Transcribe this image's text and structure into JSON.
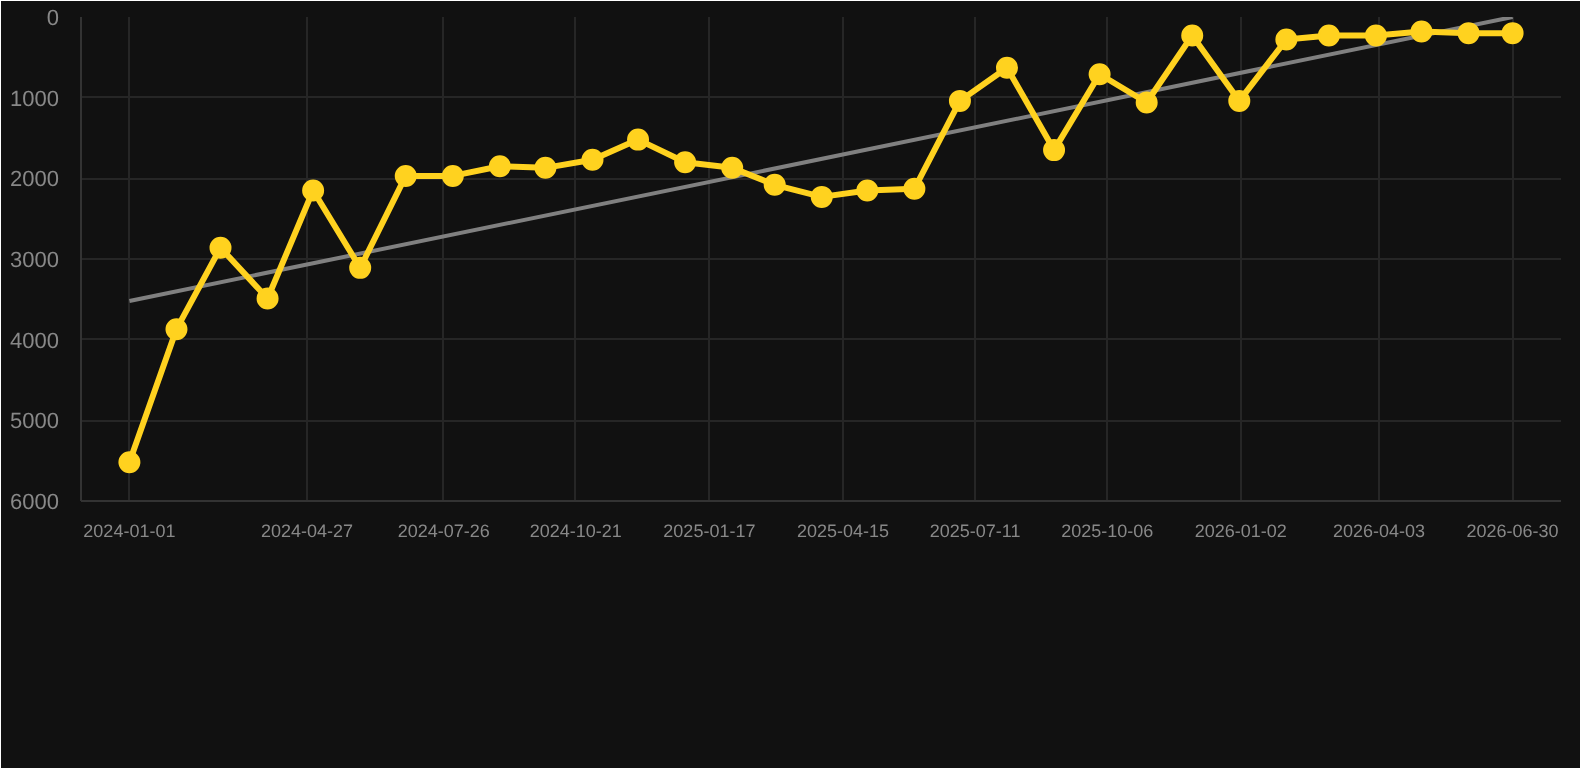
{
  "chart_data": {
    "type": "line",
    "x": [
      "2024-01-01",
      "2024-02-01",
      "2024-03-01",
      "2024-04-01",
      "2024-05-01",
      "2024-06-01",
      "2024-07-01",
      "2024-08-01",
      "2024-09-01",
      "2024-10-01",
      "2024-11-01",
      "2024-12-01",
      "2025-01-01",
      "2025-02-01",
      "2025-03-01",
      "2025-04-01",
      "2025-05-01",
      "2025-06-01",
      "2025-07-01",
      "2025-08-01",
      "2025-09-01",
      "2025-10-01",
      "2025-11-01",
      "2025-12-01",
      "2026-01-01",
      "2026-02-01",
      "2026-03-01",
      "2026-04-01",
      "2026-05-01",
      "2026-06-01",
      "2026-06-30"
    ],
    "series": [
      {
        "color": "#ffd21f",
        "marker": "circle",
        "values": [
          5520,
          3870,
          2860,
          3490,
          2150,
          3110,
          1970,
          1970,
          1850,
          1870,
          1770,
          1520,
          1800,
          1870,
          2080,
          2230,
          2150,
          2130,
          1040,
          630,
          1650,
          710,
          1060,
          230,
          1040,
          280,
          230,
          230,
          180,
          200,
          200
        ]
      },
      {
        "color": "#808080",
        "marker": "none",
        "x": [
          "2024-01-01",
          "2026-06-30"
        ],
        "values": [
          3520,
          0
        ]
      }
    ],
    "ylim": [
      6000,
      0
    ],
    "yticks": [
      0,
      1000,
      2000,
      3000,
      4000,
      5000,
      6000
    ],
    "xlim": [
      "2024-01-01",
      "2026-06-30"
    ],
    "xticks": [
      "2024-01-01",
      "2024-04-27",
      "2024-07-26",
      "2024-10-21",
      "2025-01-17",
      "2025-04-15",
      "2025-07-11",
      "2025-10-06",
      "2026-01-02",
      "2026-04-03",
      "2026-06-30"
    ],
    "grid": true,
    "line_style": "solid"
  }
}
